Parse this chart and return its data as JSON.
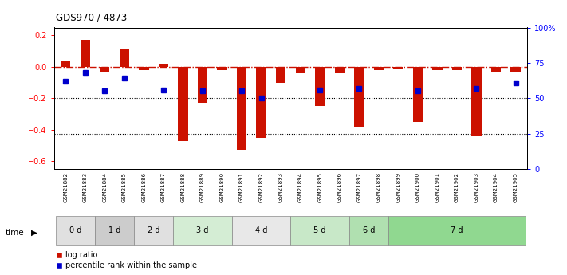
{
  "title": "GDS970 / 4873",
  "samples": [
    "GSM21882",
    "GSM21883",
    "GSM21884",
    "GSM21885",
    "GSM21886",
    "GSM21887",
    "GSM21888",
    "GSM21889",
    "GSM21890",
    "GSM21891",
    "GSM21892",
    "GSM21893",
    "GSM21894",
    "GSM21895",
    "GSM21896",
    "GSM21897",
    "GSM21898",
    "GSM21899",
    "GSM21900",
    "GSM21901",
    "GSM21902",
    "GSM21903",
    "GSM21904",
    "GSM21905"
  ],
  "log_ratio": [
    0.04,
    0.17,
    -0.03,
    0.11,
    -0.02,
    0.02,
    -0.47,
    -0.23,
    -0.02,
    -0.53,
    -0.45,
    -0.1,
    -0.04,
    -0.25,
    -0.04,
    -0.38,
    -0.02,
    -0.01,
    -0.35,
    -0.02,
    -0.02,
    -0.44,
    -0.03,
    -0.03
  ],
  "percentile_rank": [
    62,
    68,
    55,
    64,
    null,
    56,
    null,
    55,
    null,
    55,
    50,
    null,
    null,
    56,
    null,
    57,
    null,
    null,
    55,
    null,
    null,
    57,
    null,
    61
  ],
  "time_groups": [
    {
      "label": "0 d",
      "start": 0,
      "end": 2,
      "color": "#e0e0e0"
    },
    {
      "label": "1 d",
      "start": 2,
      "end": 4,
      "color": "#cccccc"
    },
    {
      "label": "2 d",
      "start": 4,
      "end": 6,
      "color": "#e0e0e0"
    },
    {
      "label": "3 d",
      "start": 6,
      "end": 9,
      "color": "#d4edd4"
    },
    {
      "label": "4 d",
      "start": 9,
      "end": 12,
      "color": "#e8e8e8"
    },
    {
      "label": "5 d",
      "start": 12,
      "end": 15,
      "color": "#c8e8c8"
    },
    {
      "label": "6 d",
      "start": 15,
      "end": 17,
      "color": "#b0e0b0"
    },
    {
      "label": "7 d",
      "start": 17,
      "end": 24,
      "color": "#90d890"
    }
  ],
  "ylim_left": [
    -0.65,
    0.25
  ],
  "ylim_right": [
    0,
    100
  ],
  "yticks_left": [
    -0.6,
    -0.4,
    -0.2,
    0.0,
    0.2
  ],
  "yticks_right": [
    0,
    25,
    50,
    75,
    100
  ],
  "ytick_right_labels": [
    "0",
    "25",
    "50",
    "75",
    "100%"
  ],
  "bar_color": "#cc1100",
  "dot_color": "#0000cc",
  "hline_color": "#cc1100",
  "dotted_line_color": "#000000",
  "bg_color": "#ffffff",
  "sample_panel_color": "#d4d4d4"
}
